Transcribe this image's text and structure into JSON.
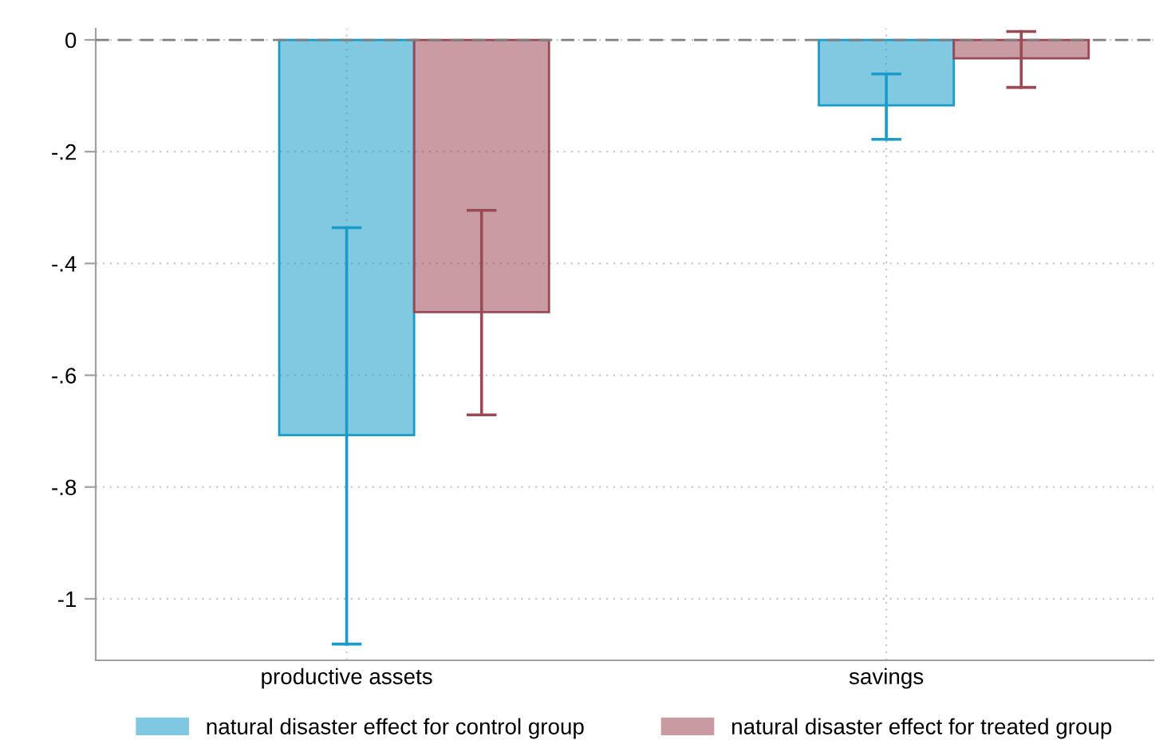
{
  "chart_data": {
    "type": "bar",
    "categories": [
      "productive assets",
      "savings"
    ],
    "series": [
      {
        "name": "natural disaster effect for control group",
        "color": "#1a9bc9",
        "values": [
          -0.707,
          -0.117
        ],
        "errors": [
          [
            -1.081,
            -0.336
          ],
          [
            -0.178,
            -0.061
          ]
        ]
      },
      {
        "name": "natural disaster effect for treated group",
        "color": "#9a4a55",
        "values": [
          -0.487,
          -0.033
        ],
        "errors": [
          [
            -0.671,
            -0.305
          ],
          [
            -0.085,
            0.015
          ]
        ]
      }
    ],
    "ylim": [
      -1.11,
      0.02
    ],
    "yticks": [
      {
        "value": 0,
        "label": "0"
      },
      {
        "value": -0.2,
        "label": "-.2"
      },
      {
        "value": -0.4,
        "label": "-.4"
      },
      {
        "value": -0.6,
        "label": "-.6"
      },
      {
        "value": -0.8,
        "label": "-.8"
      },
      {
        "value": -1,
        "label": "-1"
      }
    ],
    "ref_lines": [
      {
        "axis": "y",
        "value": 0,
        "color": "#808080",
        "line_style": "dashed"
      }
    ],
    "grid": true,
    "legend": "bottom"
  }
}
